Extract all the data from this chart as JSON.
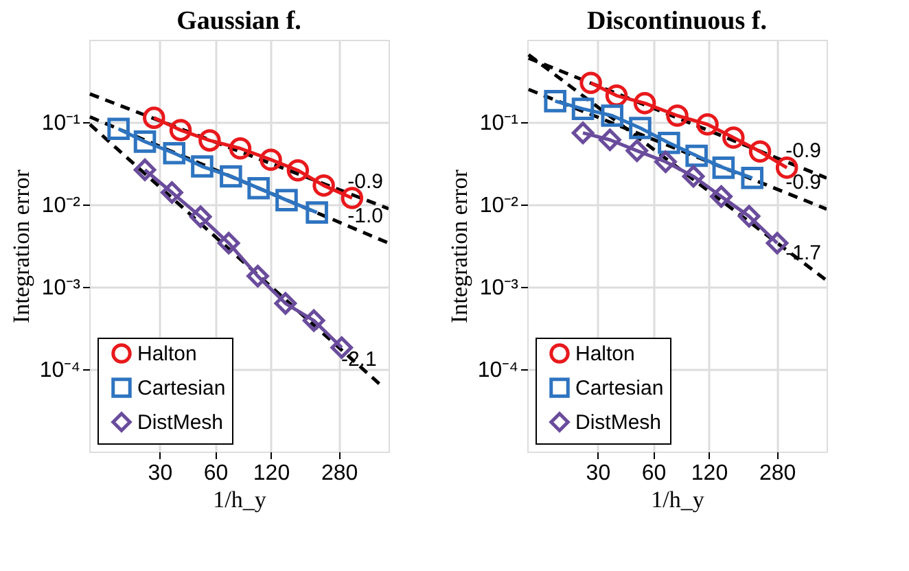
{
  "chart_data": [
    {
      "type": "line",
      "title": "Gaussian f.",
      "xlabel": "1/h_y",
      "ylabel": "Integration error",
      "log": "xy",
      "grid": true,
      "legend": "bottom left",
      "xlim": [
        12.5,
        520
      ],
      "ylim": [
        1e-05,
        1
      ],
      "xticks": [
        30,
        60,
        120,
        280
      ],
      "yticks": [
        {
          "value": 0.1,
          "label": "10⁻¹"
        },
        {
          "value": 0.01,
          "label": "10⁻²"
        },
        {
          "value": 0.001,
          "label": "10⁻³"
        },
        {
          "value": 0.0001,
          "label": "10⁻⁴"
        }
      ],
      "series": [
        {
          "name": "Halton",
          "color": "#e8191c",
          "marker": "circle",
          "line_style": "solid",
          "x": [
            28,
            39,
            56,
            82,
            120,
            168,
            232,
            330
          ],
          "values": [
            0.113,
            0.08,
            0.06,
            0.048,
            0.035,
            0.026,
            0.017,
            0.012
          ]
        },
        {
          "name": "Cartesian",
          "color": "#2e74c0",
          "marker": "square",
          "line_style": "solid",
          "x": [
            18,
            25,
            36,
            51,
            73,
            103,
            146,
            213
          ],
          "values": [
            0.083,
            0.058,
            0.042,
            0.029,
            0.022,
            0.0158,
            0.0113,
            0.008
          ]
        },
        {
          "name": "DistMesh",
          "color": "#6a4c9c",
          "marker": "diamond",
          "line_style": "solid",
          "x": [
            25,
            35,
            50,
            71,
            102,
            144,
            205,
            290
          ],
          "values": [
            0.0264,
            0.014,
            0.0071,
            0.0034,
            0.00135,
            0.00063,
            0.00039,
            0.000183
          ]
        },
        {
          "type": "line",
          "color": "#000000",
          "line_style": "dashed",
          "marker": "none",
          "x": [
            12.6,
            520
          ],
          "values": [
            0.22,
            0.0089
          ]
        },
        {
          "type": "line",
          "color": "#000000",
          "line_style": "dashed",
          "marker": "none",
          "x": [
            12.6,
            520
          ],
          "values": [
            0.116,
            0.0034
          ]
        },
        {
          "type": "line",
          "color": "#000000",
          "line_style": "dashed",
          "marker": "none",
          "x": [
            12.6,
            480
          ],
          "values": [
            0.094,
            6.2e-05
          ]
        }
      ],
      "annotations": [
        "-0.9",
        "-1.0",
        "-2.1"
      ]
    },
    {
      "type": "line",
      "title": "Discontinuous f.",
      "xlabel": "1/h_y",
      "ylabel": "Integration error",
      "log": "xy",
      "grid": true,
      "legend": "bottom left",
      "xlim": [
        12.5,
        520
      ],
      "ylim": [
        1e-05,
        1
      ],
      "xticks": [
        30,
        60,
        120,
        280
      ],
      "yticks": [
        {
          "value": 0.1,
          "label": "10⁻¹"
        },
        {
          "value": 0.01,
          "label": "10⁻²"
        },
        {
          "value": 0.001,
          "label": "10⁻³"
        },
        {
          "value": 0.0001,
          "label": "10⁻⁴"
        }
      ],
      "series": [
        {
          "name": "Halton",
          "color": "#e8191c",
          "marker": "circle",
          "line_style": "solid",
          "x": [
            27.6,
            38,
            54,
            81,
            118,
            163,
            227,
            317
          ],
          "values": [
            0.3,
            0.21,
            0.17,
            0.12,
            0.094,
            0.065,
            0.044,
            0.028
          ]
        },
        {
          "name": "Cartesian",
          "color": "#2e74c0",
          "marker": "square",
          "line_style": "solid",
          "x": [
            17.7,
            25,
            36,
            51,
            73,
            103,
            144,
            206
          ],
          "values": [
            0.18,
            0.145,
            0.12,
            0.085,
            0.056,
            0.039,
            0.028,
            0.021
          ]
        },
        {
          "name": "DistMesh",
          "color": "#6a4c9c",
          "marker": "diamond",
          "line_style": "solid",
          "x": [
            25,
            35,
            49,
            70,
            99,
            140,
            198,
            281
          ],
          "values": [
            0.074,
            0.061,
            0.045,
            0.033,
            0.022,
            0.0125,
            0.0072,
            0.0034
          ]
        },
        {
          "type": "line",
          "color": "#000000",
          "line_style": "dashed",
          "marker": "none",
          "x": [
            12.7,
            520
          ],
          "values": [
            0.6,
            0.021
          ]
        },
        {
          "type": "line",
          "color": "#000000",
          "line_style": "dashed",
          "marker": "none",
          "x": [
            12.7,
            520
          ],
          "values": [
            0.25,
            0.0088
          ]
        },
        {
          "type": "line",
          "color": "#000000",
          "line_style": "dashed",
          "marker": "none",
          "x": [
            12.7,
            520
          ],
          "values": [
            0.66,
            0.0012
          ]
        }
      ],
      "annotations": [
        "-0.9",
        "-0.9",
        "-1.7"
      ]
    }
  ]
}
